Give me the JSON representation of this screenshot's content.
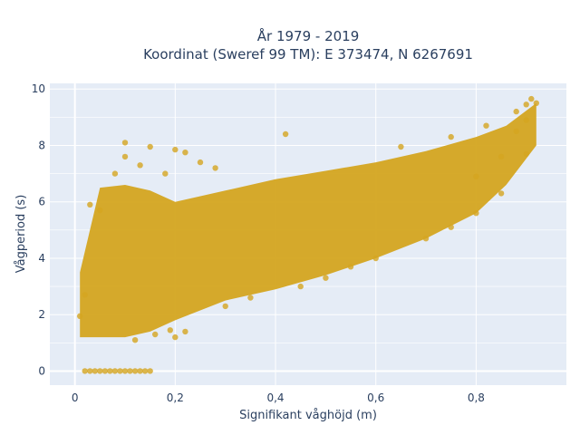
{
  "chart_data": {
    "type": "scatter",
    "title_line1": "År 1979 - 2019",
    "title_line2": "Koordinat (Sweref 99 TM): E 373474, N 6267691",
    "xlabel": "Signifikant våghöjd (m)",
    "ylabel": "Vågperiod (s)",
    "xlim": [
      -0.05,
      0.98
    ],
    "ylim": [
      -0.5,
      10.2
    ],
    "x_ticks": [
      0,
      0.2,
      0.4,
      0.6,
      0.8
    ],
    "x_tick_labels": [
      "0",
      "0,2",
      "0,4",
      "0,6",
      "0,8"
    ],
    "y_ticks": [
      0,
      2,
      4,
      6,
      8,
      10
    ],
    "y_tick_labels": [
      "0",
      "2",
      "4",
      "6",
      "8",
      "10"
    ],
    "grid": true,
    "marker_color": "#D4A520",
    "plot_background": "#E5ECF6",
    "bands": [
      {
        "x": [
          0.01,
          0.05,
          0.1,
          0.15,
          0.2,
          0.3,
          0.4,
          0.5,
          0.6,
          0.7,
          0.8,
          0.86,
          0.92
        ],
        "y_low": [
          1.2,
          1.2,
          1.2,
          1.4,
          1.8,
          2.5,
          2.9,
          3.4,
          4.0,
          4.7,
          5.6,
          6.6,
          8.0
        ],
        "y_high": [
          3.5,
          6.5,
          6.6,
          6.4,
          6.0,
          6.4,
          6.8,
          7.1,
          7.4,
          7.8,
          8.3,
          8.7,
          9.5
        ]
      }
    ],
    "points": [
      {
        "x": 0.01,
        "y": 1.95
      },
      {
        "x": 0.02,
        "y": 2.7
      },
      {
        "x": 0.03,
        "y": 5.9
      },
      {
        "x": 0.05,
        "y": 5.7
      },
      {
        "x": 0.08,
        "y": 7.0
      },
      {
        "x": 0.1,
        "y": 7.6
      },
      {
        "x": 0.1,
        "y": 8.1
      },
      {
        "x": 0.13,
        "y": 7.3
      },
      {
        "x": 0.15,
        "y": 7.95
      },
      {
        "x": 0.18,
        "y": 7.0
      },
      {
        "x": 0.2,
        "y": 7.85
      },
      {
        "x": 0.22,
        "y": 7.75
      },
      {
        "x": 0.25,
        "y": 7.4
      },
      {
        "x": 0.28,
        "y": 7.2
      },
      {
        "x": 0.42,
        "y": 8.4
      },
      {
        "x": 0.65,
        "y": 7.95
      },
      {
        "x": 0.75,
        "y": 8.3
      },
      {
        "x": 0.82,
        "y": 8.7
      },
      {
        "x": 0.88,
        "y": 9.2
      },
      {
        "x": 0.9,
        "y": 9.45
      },
      {
        "x": 0.91,
        "y": 9.65
      },
      {
        "x": 0.92,
        "y": 9.5
      },
      {
        "x": 0.9,
        "y": 8.9
      },
      {
        "x": 0.88,
        "y": 8.5
      },
      {
        "x": 0.85,
        "y": 7.6
      },
      {
        "x": 0.8,
        "y": 6.9
      },
      {
        "x": 0.2,
        "y": 1.2
      },
      {
        "x": 0.22,
        "y": 1.4
      },
      {
        "x": 0.19,
        "y": 1.45
      },
      {
        "x": 0.16,
        "y": 1.3
      },
      {
        "x": 0.12,
        "y": 1.1
      },
      {
        "x": 0.3,
        "y": 2.3
      },
      {
        "x": 0.35,
        "y": 2.6
      },
      {
        "x": 0.45,
        "y": 3.0
      },
      {
        "x": 0.5,
        "y": 3.3
      },
      {
        "x": 0.55,
        "y": 3.7
      },
      {
        "x": 0.6,
        "y": 4.0
      },
      {
        "x": 0.7,
        "y": 4.7
      },
      {
        "x": 0.75,
        "y": 5.1
      },
      {
        "x": 0.8,
        "y": 5.6
      },
      {
        "x": 0.85,
        "y": 6.3
      },
      {
        "x": 0.9,
        "y": 7.7
      },
      {
        "x": 0.02,
        "y": 0.0
      },
      {
        "x": 0.04,
        "y": 0.0
      },
      {
        "x": 0.06,
        "y": 0.0
      },
      {
        "x": 0.08,
        "y": 0.0
      },
      {
        "x": 0.1,
        "y": 0.0
      },
      {
        "x": 0.12,
        "y": 0.0
      },
      {
        "x": 0.14,
        "y": 0.0
      },
      {
        "x": 0.03,
        "y": 0.0
      },
      {
        "x": 0.05,
        "y": 0.0
      },
      {
        "x": 0.07,
        "y": 0.0
      },
      {
        "x": 0.09,
        "y": 0.0
      },
      {
        "x": 0.11,
        "y": 0.0
      },
      {
        "x": 0.13,
        "y": 0.0
      },
      {
        "x": 0.15,
        "y": 0.0
      }
    ]
  }
}
